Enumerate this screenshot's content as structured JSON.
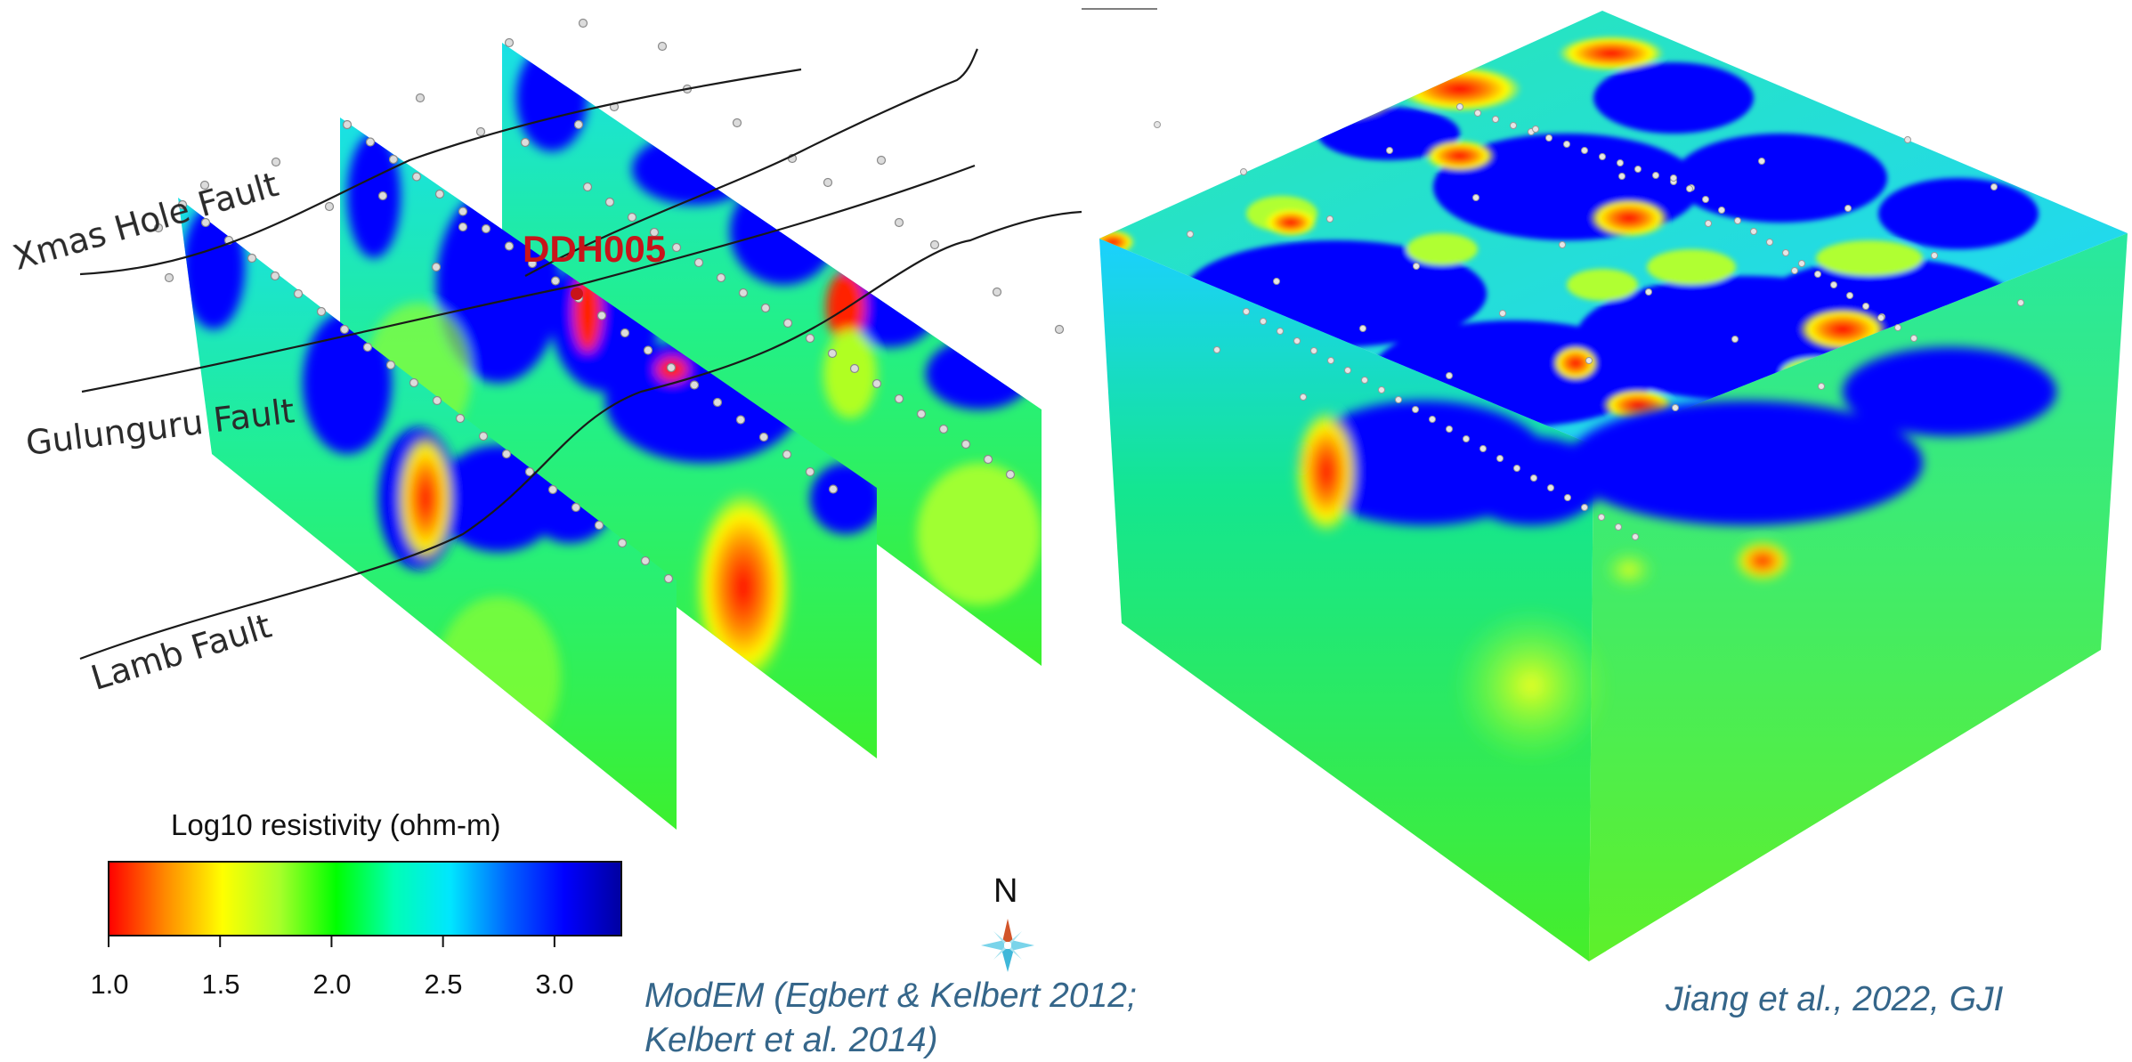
{
  "left_panel": {
    "faults": [
      {
        "id": "xmas",
        "label": "Xmas Hole Fault"
      },
      {
        "id": "gulunguru",
        "label": "Gulunguru Fault"
      },
      {
        "id": "lamb",
        "label": "Lamb Fault"
      }
    ],
    "well": {
      "label": "DDH005",
      "color": "#c8141a"
    }
  },
  "colorbar": {
    "title": "Log10 resistivity (ohm-m)",
    "ticks": [
      "1.0",
      "1.5",
      "2.0",
      "2.5",
      "3.0"
    ],
    "range": [
      1.0,
      3.3
    ],
    "colors": [
      "#ff0000",
      "#ff8a00",
      "#ffff00",
      "#a8ff2a",
      "#00ff00",
      "#00ffb4",
      "#00e6ff",
      "#0064ff",
      "#0000ff",
      "#0000a0"
    ]
  },
  "compass": {
    "label": "N",
    "icon": "north-arrow-icon"
  },
  "credits": {
    "left_line1": "ModEM (Egbert & Kelbert 2012;",
    "left_line2": "Kelbert et al. 2014)",
    "right": "Jiang et al., 2022, GJI"
  }
}
